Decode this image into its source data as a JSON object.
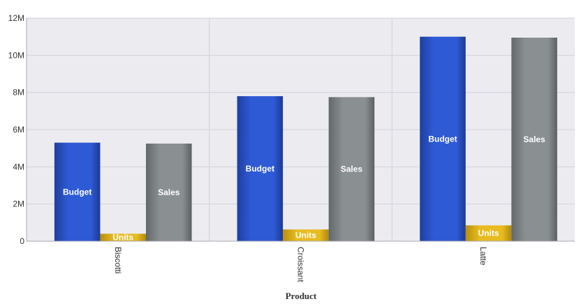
{
  "chart_data": {
    "type": "bar",
    "categories": [
      "Biscotti",
      "Croissant",
      "Latte"
    ],
    "series": [
      {
        "name": "Budget",
        "values": [
          5300000,
          7800000,
          11000000
        ]
      },
      {
        "name": "Units",
        "values": [
          400000,
          630000,
          850000
        ]
      },
      {
        "name": "Sales",
        "values": [
          5250000,
          7750000,
          10950000
        ]
      }
    ],
    "colors": {
      "Budget": "#2e5ad6",
      "Units": "#e3b51a",
      "Sales": "#888d8f",
      "plot_background": "#ebebf0",
      "grid": "#d2d2d8"
    },
    "title": "",
    "xlabel": "Product",
    "ylabel": "",
    "ylim": [
      0,
      12000000
    ],
    "yticks": [
      "0",
      "2M",
      "4M",
      "6M",
      "8M",
      "10M",
      "12M"
    ],
    "grid": true,
    "legend": "none",
    "bar_labels": "series-name"
  }
}
